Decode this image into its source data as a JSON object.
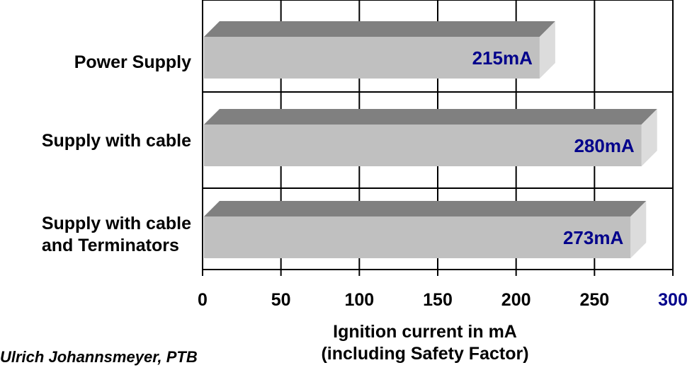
{
  "chart_data": {
    "type": "bar",
    "orientation": "horizontal",
    "categories": [
      "Power Supply",
      "Supply with cable\nand Terminators",
      "Supply with cable"
    ],
    "category_labels": {
      "power_supply": "Power Supply",
      "supply_with_cable": "Supply with cable",
      "supply_with_cable_terminators_line1": "Supply with cable",
      "supply_with_cable_terminators_line2": "and Terminators"
    },
    "values": [
      215,
      273,
      280
    ],
    "data_labels": [
      "215mA",
      "273mA",
      "280mA"
    ],
    "xlim": [
      0,
      300
    ],
    "xticks": [
      "0",
      "50",
      "100",
      "150",
      "200",
      "250",
      "300"
    ],
    "xlabel_line1": "Ignition current in mA",
    "xlabel_line2": "(including Safety Factor)",
    "grid": true,
    "three_d": true,
    "bar_color": "#c0c0c0",
    "bar_top_color": "#808080",
    "bar_side_color": "#dcdcdc",
    "label_color": "#00008b",
    "last_tick_color": "#00008b"
  },
  "credit": "Ulrich Johannsmeyer, PTB"
}
